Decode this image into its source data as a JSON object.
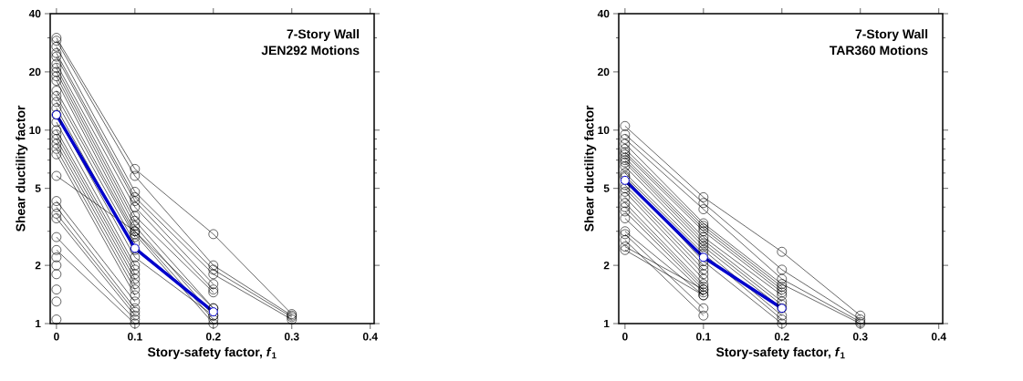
{
  "chart_data": [
    {
      "type": "line",
      "annotations": [
        "7-Story Wall",
        "JEN292 Motions"
      ],
      "xlabel": "Story-safety factor, *f*$_{1}$",
      "ylabel": "Shear ductility factor",
      "log": "y",
      "marker": "circle",
      "line_style": "solid",
      "xlim": [
        -0.008,
        0.405
      ],
      "xticks": [
        {
          "value": 0,
          "label": "0"
        },
        0.1,
        0.2,
        0.3,
        0.4
      ],
      "ylim": [
        1,
        40
      ],
      "yticks": [
        1,
        2,
        {
          "value": 3,
          "label": null
        },
        {
          "value": 4,
          "label": null
        },
        5,
        {
          "value": 6,
          "label": null
        },
        {
          "value": 7,
          "label": null
        },
        {
          "value": 8,
          "label": null
        },
        {
          "value": 9,
          "label": null
        },
        10,
        20,
        {
          "value": 30,
          "label": null
        },
        40
      ],
      "x": [
        0,
        0.1,
        0.2,
        0.3
      ],
      "series": [
        {
          "color": "#000000",
          "values": [
            30,
            6.3,
            2.9,
            1.12
          ]
        },
        {
          "color": "#000000",
          "values": [
            29,
            5.8,
            2.0,
            1.1
          ]
        },
        {
          "color": "#000000",
          "values": [
            27,
            4.8,
            1.9,
            1.08
          ]
        },
        {
          "color": "#000000",
          "values": [
            25,
            4.5,
            1.8,
            1.05
          ]
        },
        {
          "color": "#000000",
          "values": [
            24,
            4.3,
            1.6,
            null
          ]
        },
        {
          "color": "#000000",
          "values": [
            22,
            4.0,
            1.5,
            null
          ]
        },
        {
          "color": "#000000",
          "values": [
            21,
            3.6,
            1.45,
            null
          ]
        },
        {
          "color": "#000000",
          "values": [
            20,
            3.4,
            1.2,
            null
          ]
        },
        {
          "color": "#000000",
          "values": [
            19,
            3.2,
            1.1,
            null
          ]
        },
        {
          "color": "#000000",
          "values": [
            18,
            3.0,
            1.05,
            null
          ]
        },
        {
          "color": "#000000",
          "values": [
            16,
            2.9,
            1.0,
            null
          ]
        },
        {
          "color": "#000000",
          "values": [
            15,
            2.8,
            null,
            null
          ]
        },
        {
          "color": "#000000",
          "values": [
            14,
            2.6,
            null,
            null
          ]
        },
        {
          "color": "#000000",
          "values": [
            13,
            2.4,
            null,
            null
          ]
        },
        {
          "color": "#000000",
          "values": [
            12,
            2.2,
            1.1,
            null
          ]
        },
        {
          "color": "#000000",
          "values": [
            11,
            2.0,
            null,
            null
          ]
        },
        {
          "color": "#000000",
          "values": [
            10,
            1.9,
            null,
            null
          ]
        },
        {
          "color": "#000000",
          "values": [
            9.5,
            1.8,
            null,
            null
          ]
        },
        {
          "color": "#000000",
          "values": [
            9,
            1.7,
            null,
            null
          ]
        },
        {
          "color": "#000000",
          "values": [
            8.5,
            1.6,
            null,
            null
          ]
        },
        {
          "color": "#000000",
          "values": [
            8,
            1.5,
            null,
            null
          ]
        },
        {
          "color": "#000000",
          "values": [
            7.5,
            1.4,
            null,
            null
          ]
        },
        {
          "color": "#000000",
          "values": [
            5.8,
            3.0,
            1.2,
            null
          ]
        },
        {
          "color": "#000000",
          "values": [
            4.3,
            1.3,
            null,
            null
          ]
        },
        {
          "color": "#000000",
          "values": [
            4,
            1.2,
            null,
            null
          ]
        },
        {
          "color": "#000000",
          "values": [
            3.7,
            1.15,
            null,
            null
          ]
        },
        {
          "color": "#000000",
          "values": [
            3.5,
            1.1,
            null,
            null
          ]
        },
        {
          "color": "#000000",
          "values": [
            2.8,
            1.05,
            null,
            null
          ]
        },
        {
          "color": "#000000",
          "values": [
            2.4,
            1.0,
            null,
            null
          ]
        },
        {
          "color": "#000000",
          "values": [
            2.2,
            null,
            null,
            null
          ]
        },
        {
          "color": "#000000",
          "values": [
            2.0,
            null,
            null,
            null
          ]
        },
        {
          "color": "#000000",
          "values": [
            1.8,
            null,
            null,
            null
          ]
        },
        {
          "color": "#000000",
          "values": [
            1.5,
            null,
            null,
            null
          ]
        },
        {
          "color": "#000000",
          "values": [
            1.3,
            null,
            null,
            null
          ]
        },
        {
          "color": "#000000",
          "values": [
            1.05,
            null,
            null,
            null
          ]
        },
        {
          "color": "#0000cc",
          "values": [
            12,
            2.45,
            1.15,
            null
          ]
        }
      ]
    },
    {
      "type": "line",
      "annotations": [
        "7-Story Wall",
        "TAR360 Motions"
      ],
      "xlabel": "Story-safety factor, *f*$_{1}$",
      "ylabel": "Shear ductility factor",
      "log": "y",
      "marker": "circle",
      "line_style": "solid",
      "xlim": [
        -0.008,
        0.405
      ],
      "xticks": [
        {
          "value": 0,
          "label": "0"
        },
        0.1,
        0.2,
        0.3,
        0.4
      ],
      "ylim": [
        1,
        40
      ],
      "yticks": [
        1,
        2,
        {
          "value": 3,
          "label": null
        },
        {
          "value": 4,
          "label": null
        },
        5,
        {
          "value": 6,
          "label": null
        },
        {
          "value": 7,
          "label": null
        },
        {
          "value": 8,
          "label": null
        },
        {
          "value": 9,
          "label": null
        },
        10,
        20,
        {
          "value": 30,
          "label": null
        },
        40
      ],
      "x": [
        0,
        0.1,
        0.2,
        0.3
      ],
      "series": [
        {
          "color": "#000000",
          "values": [
            10.5,
            4.5,
            2.35,
            1.1
          ]
        },
        {
          "color": "#000000",
          "values": [
            9.5,
            4.2,
            1.9,
            1.05
          ]
        },
        {
          "color": "#000000",
          "values": [
            9,
            3.9,
            1.7,
            1.02
          ]
        },
        {
          "color": "#000000",
          "values": [
            8.5,
            3.3,
            1.6,
            1.0
          ]
        },
        {
          "color": "#000000",
          "values": [
            8,
            3.2,
            1.55,
            null
          ]
        },
        {
          "color": "#000000",
          "values": [
            7.7,
            3.1,
            1.5,
            null
          ]
        },
        {
          "color": "#000000",
          "values": [
            7.5,
            3.0,
            1.45,
            null
          ]
        },
        {
          "color": "#000000",
          "values": [
            7.2,
            2.8,
            1.4,
            null
          ]
        },
        {
          "color": "#000000",
          "values": [
            7,
            2.7,
            1.3,
            null
          ]
        },
        {
          "color": "#000000",
          "values": [
            6.8,
            2.6,
            1.25,
            null
          ]
        },
        {
          "color": "#000000",
          "values": [
            6.5,
            2.5,
            1.2,
            null
          ]
        },
        {
          "color": "#000000",
          "values": [
            6,
            2.4,
            1.1,
            null
          ]
        },
        {
          "color": "#000000",
          "values": [
            5.8,
            2.3,
            1.05,
            null
          ]
        },
        {
          "color": "#000000",
          "values": [
            5.7,
            2.1,
            1.0,
            null
          ]
        },
        {
          "color": "#000000",
          "values": [
            5.2,
            2.0,
            null,
            null
          ]
        },
        {
          "color": "#000000",
          "values": [
            5,
            1.9,
            null,
            null
          ]
        },
        {
          "color": "#000000",
          "values": [
            4.8,
            1.8,
            null,
            null
          ]
        },
        {
          "color": "#000000",
          "values": [
            4.5,
            1.7,
            null,
            null
          ]
        },
        {
          "color": "#000000",
          "values": [
            4.2,
            1.6,
            null,
            null
          ]
        },
        {
          "color": "#000000",
          "values": [
            4,
            1.55,
            null,
            null
          ]
        },
        {
          "color": "#000000",
          "values": [
            3.8,
            1.5,
            null,
            null
          ]
        },
        {
          "color": "#000000",
          "values": [
            3.5,
            1.45,
            null,
            null
          ]
        },
        {
          "color": "#000000",
          "values": [
            3,
            1.4,
            null,
            null
          ]
        },
        {
          "color": "#000000",
          "values": [
            2.9,
            1.2,
            null,
            null
          ]
        },
        {
          "color": "#000000",
          "values": [
            2.7,
            1.1,
            null,
            null
          ]
        },
        {
          "color": "#000000",
          "values": [
            2.5,
            1.5,
            null,
            null
          ]
        },
        {
          "color": "#000000",
          "values": [
            2.4,
            1.4,
            null,
            null
          ]
        },
        {
          "color": "#0000cc",
          "values": [
            5.5,
            2.2,
            1.2,
            null
          ]
        }
      ]
    }
  ]
}
